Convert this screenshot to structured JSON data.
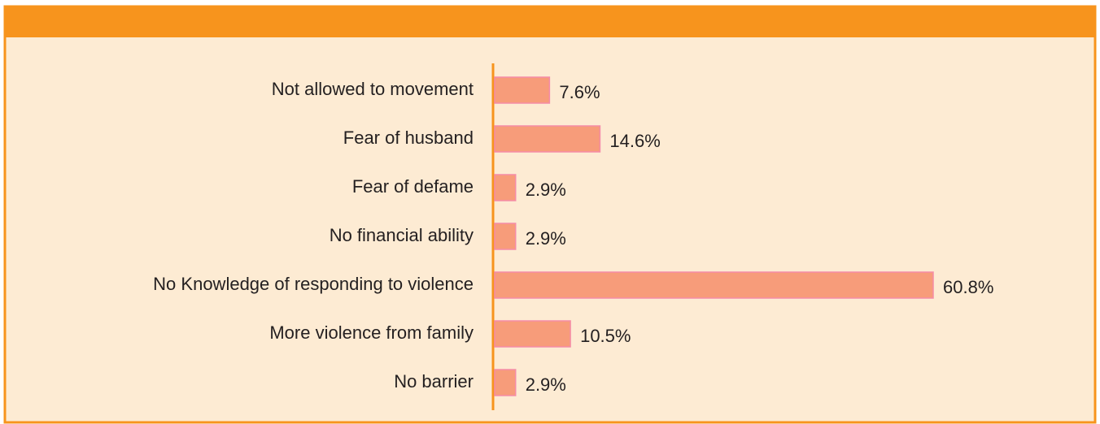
{
  "chart_data": {
    "type": "bar",
    "orientation": "horizontal",
    "categories": [
      "Not allowed to movement",
      "Fear of husband",
      "Fear of defame",
      "No financial ability",
      "No Knowledge of responding to violence",
      "More violence from family",
      "No barrier"
    ],
    "values": [
      7.6,
      14.6,
      2.9,
      2.9,
      60.8,
      10.5,
      2.9
    ],
    "value_labels": [
      "7.6%",
      "14.6%",
      "2.9%",
      "2.9%",
      "60.8%",
      "10.5%",
      "2.9%"
    ],
    "color": "#f79c7a"
  }
}
